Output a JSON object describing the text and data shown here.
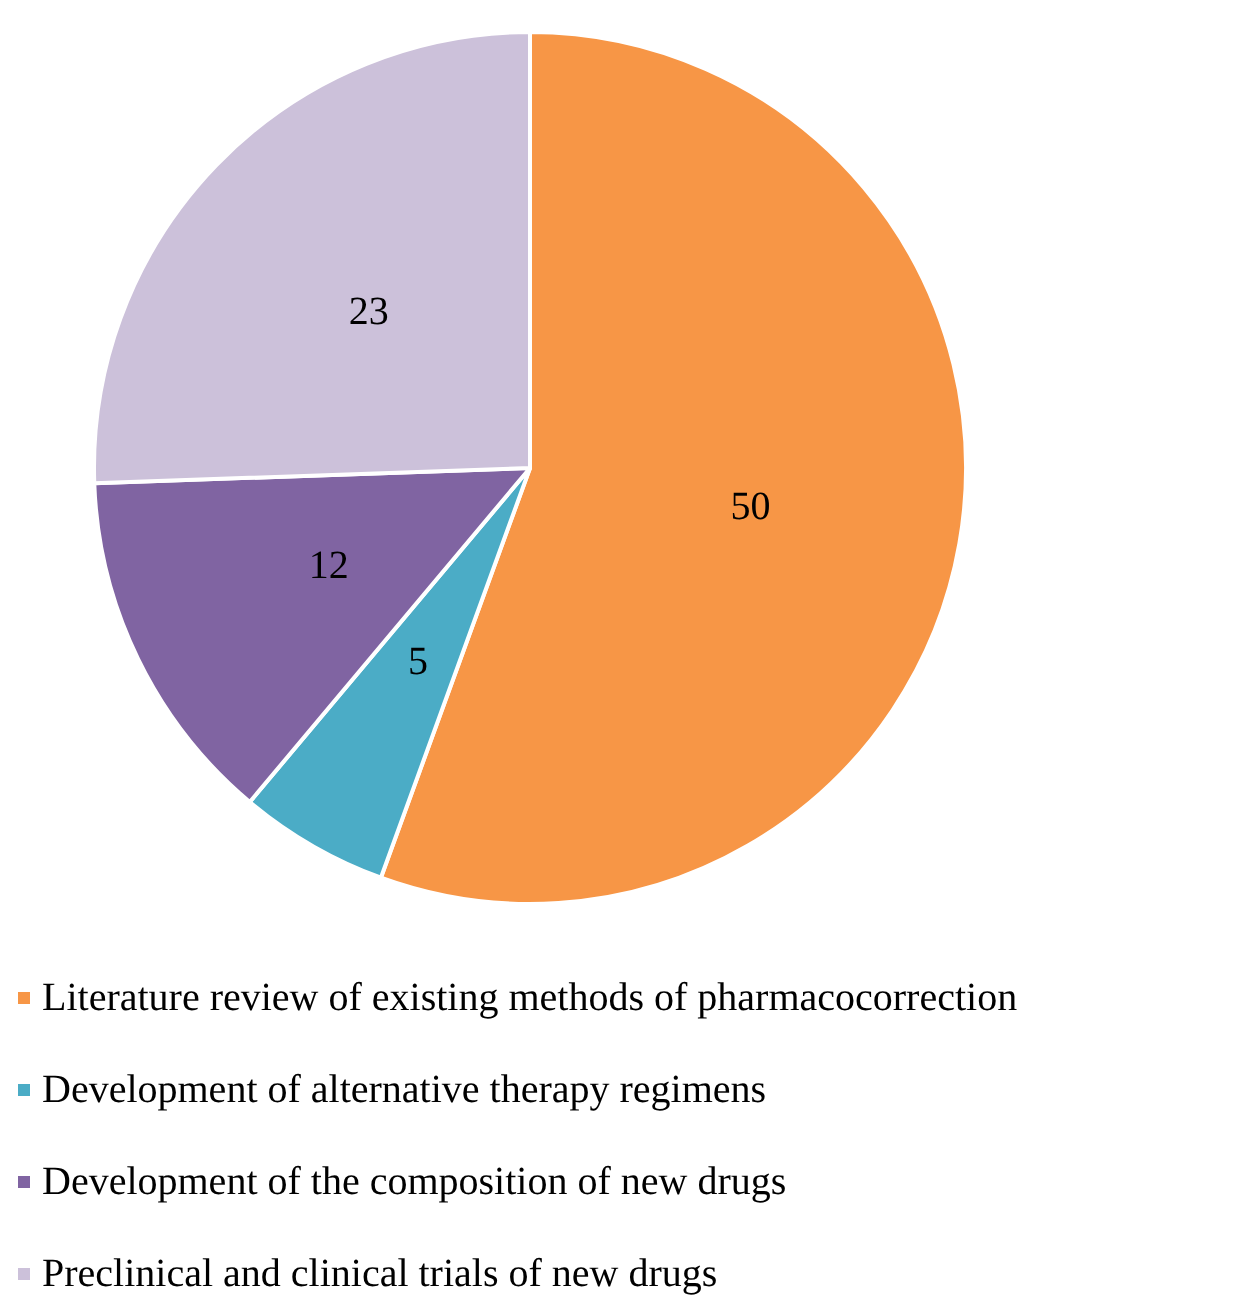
{
  "chart_data": {
    "type": "pie",
    "categories": [
      "Literature review of existing methods of pharmacocorrection",
      "Development of alternative therapy regimens",
      "Development of the composition of new drugs",
      "Preclinical and clinical trials of new drugs"
    ],
    "values": [
      50,
      5,
      12,
      23
    ],
    "colors": [
      "#f79646",
      "#4bacc6",
      "#8064a2",
      "#ccc1da"
    ],
    "data_labels": true,
    "legend": "bottom"
  }
}
